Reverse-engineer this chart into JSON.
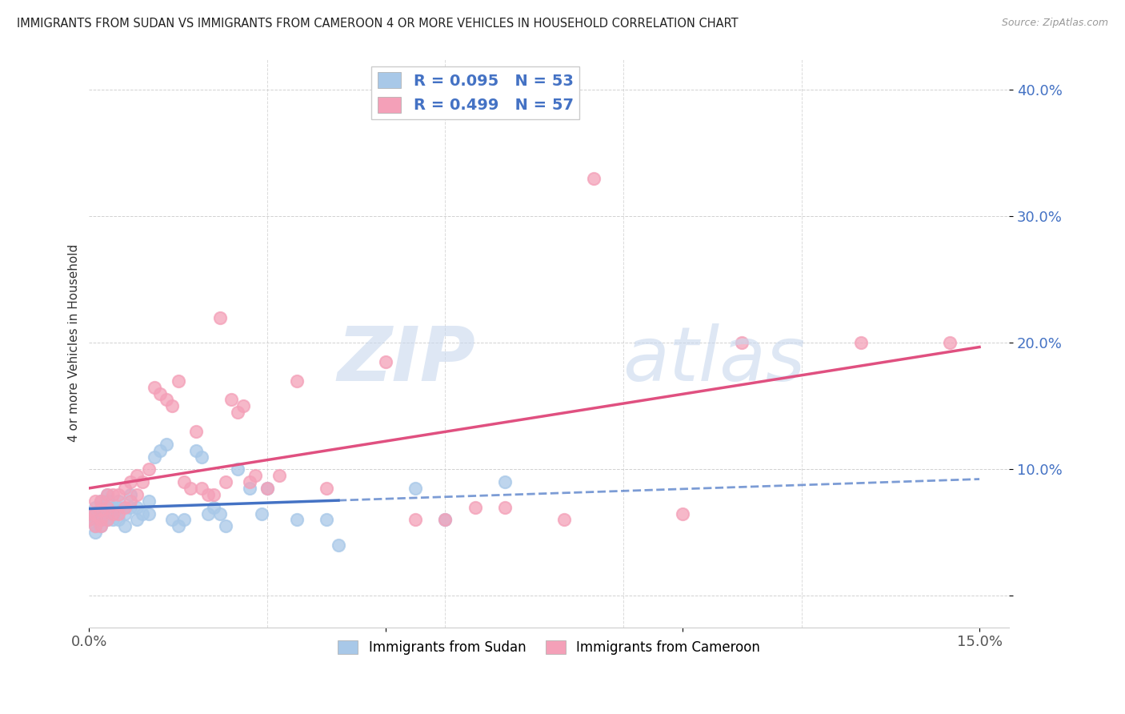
{
  "title": "IMMIGRANTS FROM SUDAN VS IMMIGRANTS FROM CAMEROON 4 OR MORE VEHICLES IN HOUSEHOLD CORRELATION CHART",
  "source": "Source: ZipAtlas.com",
  "ylabel": "4 or more Vehicles in Household",
  "xlim": [
    0.0,
    0.155
  ],
  "ylim": [
    -0.025,
    0.425
  ],
  "xtick_positions": [
    0.0,
    0.05,
    0.1,
    0.15
  ],
  "xtick_labels": [
    "0.0%",
    "",
    "",
    "15.0%"
  ],
  "ytick_positions": [
    0.0,
    0.1,
    0.2,
    0.3,
    0.4
  ],
  "ytick_labels": [
    "",
    "10.0%",
    "20.0%",
    "30.0%",
    "40.0%"
  ],
  "sudan_color": "#a8c8e8",
  "cameroon_color": "#f4a0b8",
  "sudan_line_color": "#4472c4",
  "cameroon_line_color": "#e05080",
  "sudan_R": 0.095,
  "sudan_N": 53,
  "cameroon_R": 0.499,
  "cameroon_N": 57,
  "legend_text_color": "#4472c4",
  "sudan_scatter_x": [
    0.0,
    0.0,
    0.001,
    0.001,
    0.001,
    0.001,
    0.001,
    0.002,
    0.002,
    0.002,
    0.002,
    0.002,
    0.003,
    0.003,
    0.003,
    0.003,
    0.004,
    0.004,
    0.004,
    0.005,
    0.005,
    0.005,
    0.006,
    0.006,
    0.007,
    0.007,
    0.008,
    0.008,
    0.009,
    0.01,
    0.01,
    0.011,
    0.012,
    0.013,
    0.014,
    0.015,
    0.016,
    0.018,
    0.019,
    0.02,
    0.021,
    0.022,
    0.023,
    0.025,
    0.027,
    0.029,
    0.03,
    0.035,
    0.04,
    0.042,
    0.055,
    0.06,
    0.07
  ],
  "sudan_scatter_y": [
    0.065,
    0.06,
    0.07,
    0.065,
    0.06,
    0.055,
    0.05,
    0.075,
    0.07,
    0.065,
    0.06,
    0.055,
    0.08,
    0.075,
    0.065,
    0.06,
    0.07,
    0.065,
    0.06,
    0.075,
    0.07,
    0.06,
    0.065,
    0.055,
    0.08,
    0.07,
    0.07,
    0.06,
    0.065,
    0.075,
    0.065,
    0.11,
    0.115,
    0.12,
    0.06,
    0.055,
    0.06,
    0.115,
    0.11,
    0.065,
    0.07,
    0.065,
    0.055,
    0.1,
    0.085,
    0.065,
    0.085,
    0.06,
    0.06,
    0.04,
    0.085,
    0.06,
    0.09
  ],
  "cameroon_scatter_x": [
    0.0,
    0.0,
    0.001,
    0.001,
    0.001,
    0.002,
    0.002,
    0.002,
    0.002,
    0.003,
    0.003,
    0.003,
    0.004,
    0.004,
    0.005,
    0.005,
    0.006,
    0.006,
    0.007,
    0.007,
    0.008,
    0.008,
    0.009,
    0.01,
    0.011,
    0.012,
    0.013,
    0.014,
    0.015,
    0.016,
    0.017,
    0.018,
    0.019,
    0.02,
    0.021,
    0.022,
    0.023,
    0.024,
    0.025,
    0.026,
    0.027,
    0.028,
    0.03,
    0.032,
    0.035,
    0.04,
    0.05,
    0.055,
    0.06,
    0.065,
    0.07,
    0.08,
    0.085,
    0.1,
    0.11,
    0.13,
    0.145
  ],
  "cameroon_scatter_y": [
    0.065,
    0.06,
    0.075,
    0.065,
    0.055,
    0.075,
    0.068,
    0.06,
    0.055,
    0.08,
    0.07,
    0.06,
    0.08,
    0.065,
    0.08,
    0.065,
    0.085,
    0.07,
    0.09,
    0.075,
    0.095,
    0.08,
    0.09,
    0.1,
    0.165,
    0.16,
    0.155,
    0.15,
    0.17,
    0.09,
    0.085,
    0.13,
    0.085,
    0.08,
    0.08,
    0.22,
    0.09,
    0.155,
    0.145,
    0.15,
    0.09,
    0.095,
    0.085,
    0.095,
    0.17,
    0.085,
    0.185,
    0.06,
    0.06,
    0.07,
    0.07,
    0.06,
    0.33,
    0.065,
    0.2,
    0.2,
    0.2
  ]
}
